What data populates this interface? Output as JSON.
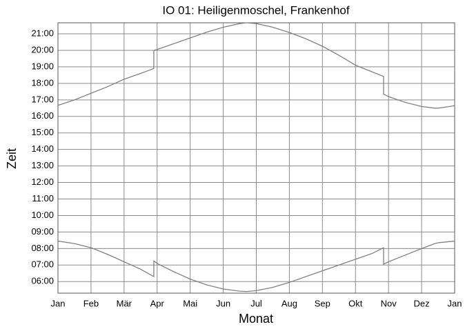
{
  "chart_data": {
    "type": "line",
    "title": "IO 01: Heiligenmoschel, Frankenhof",
    "x_label": "Monat",
    "y_label": "Zeit",
    "x": [
      0,
      0.5,
      1,
      1.5,
      2,
      2.5,
      2.9,
      2.9,
      3,
      3.5,
      4,
      4.5,
      5,
      5.5,
      5.7,
      6,
      6.5,
      7,
      7.5,
      8,
      8.5,
      9,
      9.5,
      9.85,
      9.85,
      10,
      10.5,
      11,
      11.4,
      11.5,
      12
    ],
    "series": [
      {
        "color": "#808080",
        "values": [
          16.67,
          17.0,
          17.4,
          17.8,
          18.25,
          18.6,
          18.9,
          20.0,
          20.05,
          20.4,
          20.75,
          21.1,
          21.4,
          21.62,
          21.67,
          21.62,
          21.4,
          21.08,
          20.7,
          20.25,
          19.7,
          19.1,
          18.7,
          18.42,
          17.35,
          17.2,
          16.85,
          16.6,
          16.5,
          16.5,
          16.65
        ]
      },
      {
        "color": "#808080",
        "values": [
          8.45,
          8.3,
          8.05,
          7.65,
          7.2,
          6.75,
          6.3,
          7.25,
          7.1,
          6.6,
          6.15,
          5.8,
          5.55,
          5.42,
          5.4,
          5.45,
          5.65,
          5.95,
          6.3,
          6.65,
          7.0,
          7.35,
          7.7,
          8.05,
          7.05,
          7.2,
          7.6,
          8.0,
          8.3,
          8.35,
          8.45
        ]
      }
    ],
    "xlim": [
      0,
      12
    ],
    "xticks": [
      {
        "value": 0,
        "label": "Jan"
      },
      {
        "value": 1,
        "label": "Feb"
      },
      {
        "value": 2,
        "label": "Mär"
      },
      {
        "value": 3,
        "label": "Apr"
      },
      {
        "value": 4,
        "label": "Mai"
      },
      {
        "value": 5,
        "label": "Jun"
      },
      {
        "value": 6,
        "label": "Jul"
      },
      {
        "value": 7,
        "label": "Aug"
      },
      {
        "value": 8,
        "label": "Sep"
      },
      {
        "value": 9,
        "label": "Okt"
      },
      {
        "value": 10,
        "label": "Nov"
      },
      {
        "value": 11,
        "label": "Dez"
      },
      {
        "value": 12,
        "label": "Jan"
      }
    ],
    "ylim": [
      5.3,
      21.67
    ],
    "yticks": [
      {
        "value": 6,
        "label": "06:00"
      },
      {
        "value": 7,
        "label": "07:00"
      },
      {
        "value": 8,
        "label": "08:00"
      },
      {
        "value": 9,
        "label": "09:00"
      },
      {
        "value": 10,
        "label": "10:00"
      },
      {
        "value": 11,
        "label": "11:00"
      },
      {
        "value": 12,
        "label": "12:00"
      },
      {
        "value": 13,
        "label": "13:00"
      },
      {
        "value": 14,
        "label": "14:00"
      },
      {
        "value": 15,
        "label": "15:00"
      },
      {
        "value": 16,
        "label": "16:00"
      },
      {
        "value": 17,
        "label": "17:00"
      },
      {
        "value": 18,
        "label": "18:00"
      },
      {
        "value": 19,
        "label": "19:00"
      },
      {
        "value": 20,
        "label": "20:00"
      },
      {
        "value": 21,
        "label": "21:00"
      }
    ],
    "grid": true
  }
}
